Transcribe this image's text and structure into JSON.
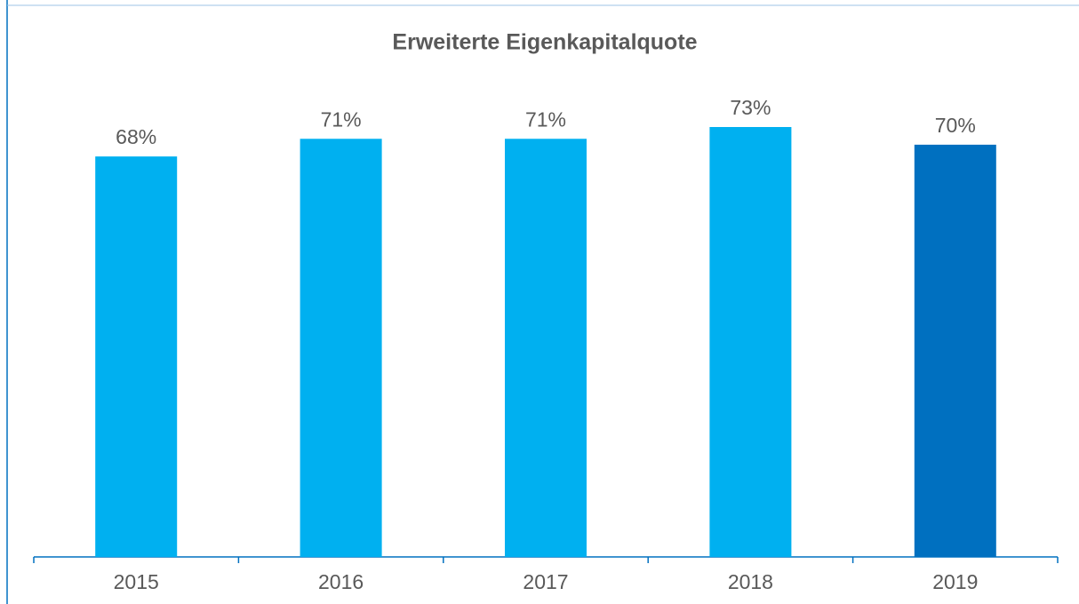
{
  "chart_data": {
    "type": "bar",
    "title": "Erweiterte Eigenkapitalquote",
    "categories": [
      "2015",
      "2016",
      "2017",
      "2018",
      "2019"
    ],
    "values": [
      68,
      71,
      71,
      73,
      70
    ],
    "value_labels": [
      "68%",
      "71%",
      "71%",
      "73%",
      "70%"
    ],
    "colors": [
      "#00b0f0",
      "#00b0f0",
      "#00b0f0",
      "#00b0f0",
      "#0070c0"
    ]
  }
}
